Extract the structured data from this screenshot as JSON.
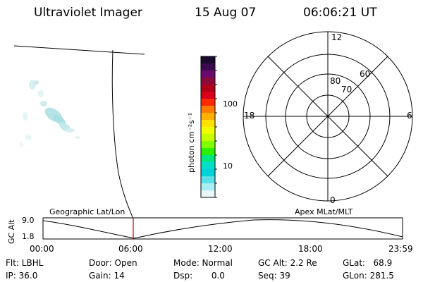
{
  "header": {
    "title": "Ultraviolet Imager",
    "date": "15 Aug 07",
    "time": "06:06:21 UT"
  },
  "colorbar": {
    "label": "photon cm⁻²s⁻¹",
    "ticks": [
      "100",
      "10"
    ],
    "colors": [
      "#1a0a2e",
      "#3c0a4e",
      "#6a0a6e",
      "#8b0a3a",
      "#b0001a",
      "#d8001a",
      "#ff2a00",
      "#ff7a00",
      "#ffb000",
      "#ffe100",
      "#f0ff00",
      "#c8ff00",
      "#80ff00",
      "#2cf000",
      "#00e680",
      "#00e0c8",
      "#00d0d8",
      "#5ae0e8",
      "#a8eef2",
      "#e8f8fa"
    ]
  },
  "polar": {
    "lat_labels": [
      "80",
      "70",
      "60"
    ],
    "mlt_labels": [
      "12",
      "18",
      "6",
      "0"
    ]
  },
  "timeline": {
    "left_label": "Geographic Lat/Lon",
    "right_label": "Apex MLat/MLT",
    "ylabel": "GC Alt",
    "ymax": "9.0",
    "ymin": "1.8",
    "times": [
      "00:00",
      "06:00",
      "12:00",
      "18:00",
      "23:59"
    ],
    "marker_color": "#c00000"
  },
  "info": {
    "flt": "Flt: LBHL",
    "ip": "IP: 36.0",
    "door": "Door: Open",
    "gain": "Gain: 14",
    "mode": "Mode: Normal",
    "dsp": "Dsp:       0.0",
    "gcalt": "GC Alt: 2.2 Re",
    "seq": "Seq: 39",
    "glat": "GLat:   68.9",
    "glon": "GLon: 281.5"
  }
}
